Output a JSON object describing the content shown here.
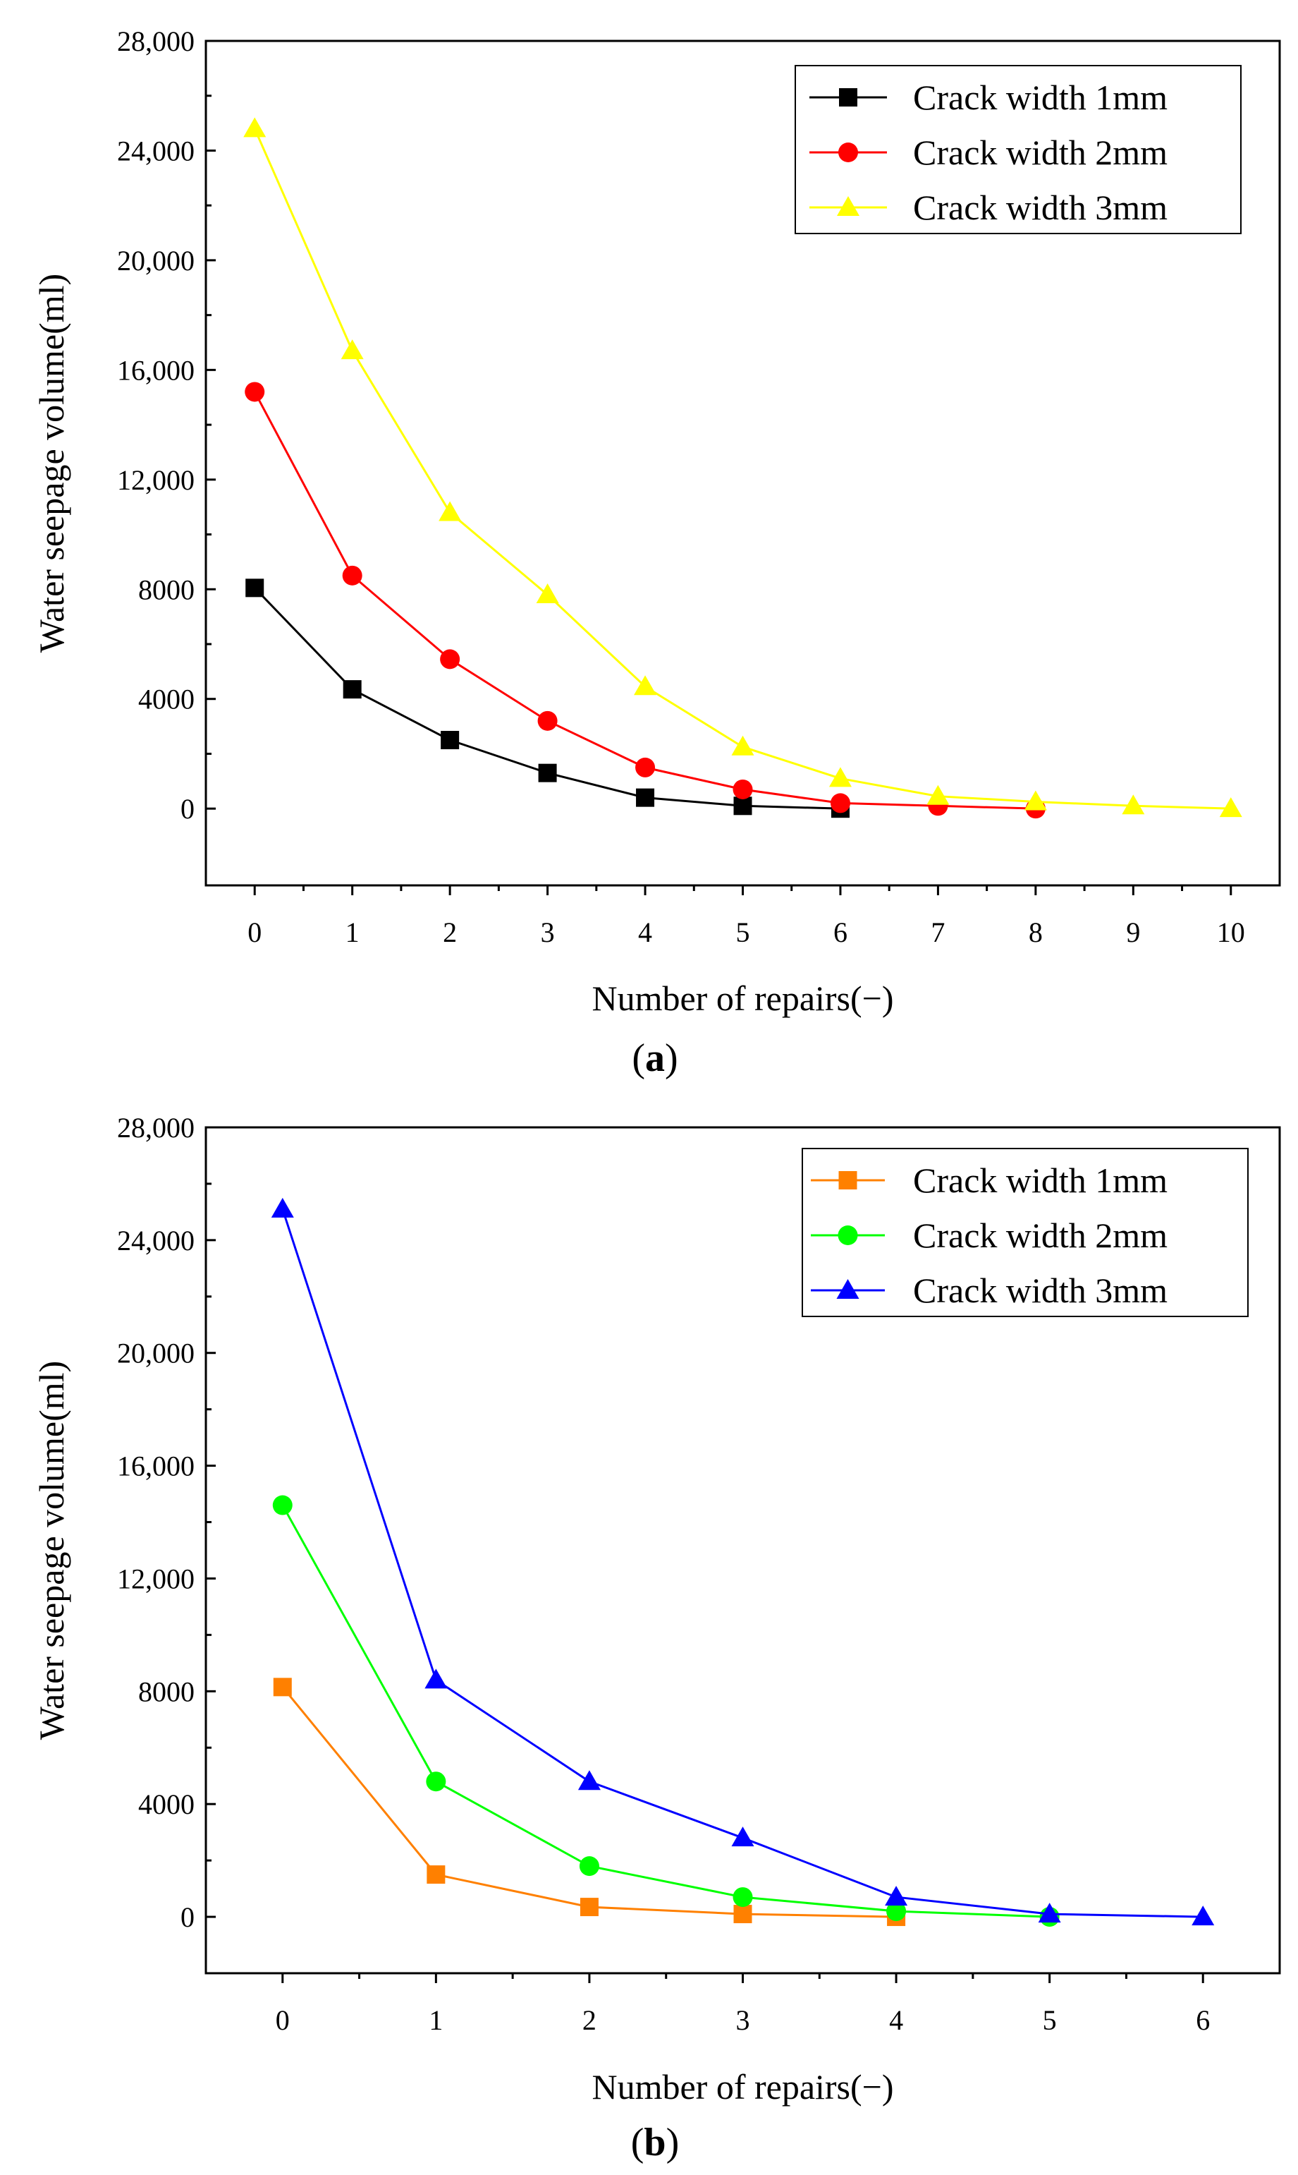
{
  "figure": {
    "panels": [
      {
        "label": "a",
        "open": "(",
        "close": ")"
      },
      {
        "label": "b",
        "open": "(",
        "close": ")"
      }
    ]
  },
  "chart_data": [
    {
      "type": "line",
      "panel": "a",
      "title": "",
      "xlabel": "Number of repairs(−)",
      "ylabel": "Water seepage volume(ml)",
      "xlim": [
        -0.5,
        10.5
      ],
      "ylim": [
        -2800,
        28000
      ],
      "xticks": [
        0,
        1,
        2,
        3,
        4,
        5,
        6,
        7,
        8,
        9,
        10
      ],
      "yticks": [
        0,
        4000,
        8000,
        12000,
        16000,
        20000,
        24000,
        28000
      ],
      "ytick_labels": [
        "0",
        "4000",
        "8000",
        "12,000",
        "16,000",
        "20,000",
        "24,000",
        "28,000"
      ],
      "legend_position": "top-right",
      "series": [
        {
          "name": "Crack width 1mm",
          "color": "#000000",
          "marker": "square",
          "x": [
            0,
            1,
            2,
            3,
            4,
            5,
            6
          ],
          "values": [
            8050,
            4350,
            2500,
            1300,
            400,
            100,
            0
          ]
        },
        {
          "name": "Crack width 2mm",
          "color": "#ff0000",
          "marker": "circle",
          "x": [
            0,
            1,
            2,
            3,
            4,
            5,
            6,
            7,
            8
          ],
          "values": [
            15200,
            8500,
            5450,
            3200,
            1500,
            700,
            200,
            100,
            0
          ]
        },
        {
          "name": "Crack width 3mm",
          "color": "#ffff00",
          "marker": "triangle",
          "x": [
            0,
            1,
            2,
            3,
            4,
            5,
            6,
            7,
            8,
            9,
            10
          ],
          "values": [
            24800,
            16700,
            10800,
            7800,
            4450,
            2250,
            1100,
            450,
            250,
            100,
            0
          ]
        }
      ]
    },
    {
      "type": "line",
      "panel": "b",
      "title": "",
      "xlabel": "Number of repairs(−)",
      "ylabel": "Water seepage volume(ml)",
      "xlim": [
        -0.5,
        6.5
      ],
      "ylim": [
        -2000,
        28000
      ],
      "xticks": [
        0,
        1,
        2,
        3,
        4,
        5,
        6
      ],
      "yticks": [
        0,
        4000,
        8000,
        12000,
        16000,
        20000,
        24000,
        28000
      ],
      "ytick_labels": [
        "0",
        "4000",
        "8000",
        "12,000",
        "16,000",
        "20,000",
        "24,000",
        "28,000"
      ],
      "legend_position": "top-right",
      "series": [
        {
          "name": "Crack width 1mm",
          "color": "#ff8000",
          "marker": "square",
          "x": [
            0,
            1,
            2,
            3,
            4
          ],
          "values": [
            8150,
            1500,
            350,
            100,
            0
          ]
        },
        {
          "name": "Crack width 2mm",
          "color": "#00ff00",
          "marker": "circle",
          "x": [
            0,
            1,
            2,
            3,
            4,
            5
          ],
          "values": [
            14600,
            4800,
            1800,
            700,
            200,
            0
          ]
        },
        {
          "name": "Crack width 3mm",
          "color": "#0000ff",
          "marker": "triangle",
          "x": [
            0,
            1,
            2,
            3,
            4,
            5,
            6
          ],
          "values": [
            25100,
            8400,
            4800,
            2800,
            700,
            100,
            0
          ]
        }
      ]
    }
  ]
}
